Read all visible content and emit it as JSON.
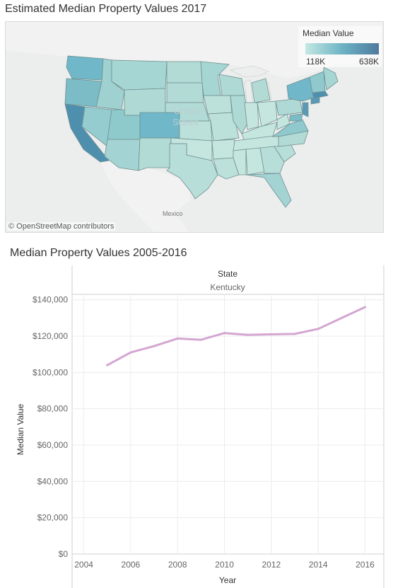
{
  "map": {
    "title": "Estimated Median Property Values 2017",
    "legend_title": "Median Value",
    "legend_min": "118K",
    "legend_max": "638K",
    "color_low": "#c4e8e3",
    "color_high": "#4f7a9e",
    "country_label_1": "United",
    "country_label_2": "States",
    "mexico_label": "Mexico",
    "attribution": "© OpenStreetMap contributors"
  },
  "chart_data": {
    "type": "line",
    "title": "Median Property Values 2005-2016",
    "header_title": "State",
    "header_value": "Kentucky",
    "xlabel": "Year",
    "ylabel": "Median Value",
    "xlim": [
      2003.5,
      2016.8
    ],
    "ylim": [
      0,
      143000
    ],
    "x_ticks": [
      2004,
      2006,
      2008,
      2010,
      2012,
      2014,
      2016
    ],
    "y_ticks": [
      0,
      20000,
      40000,
      60000,
      80000,
      100000,
      120000,
      140000
    ],
    "y_tick_labels": [
      "$0",
      "$20,000",
      "$40,000",
      "$60,000",
      "$80,000",
      "$100,000",
      "$120,000",
      "$140,000"
    ],
    "line_color": "#d4a6d1",
    "grid": true,
    "x": [
      2005,
      2006,
      2007,
      2008,
      2009,
      2010,
      2011,
      2012,
      2013,
      2014,
      2015,
      2016
    ],
    "values": [
      104000,
      111000,
      114500,
      118700,
      118000,
      121700,
      120700,
      121000,
      121200,
      124000,
      130000,
      136000
    ]
  }
}
